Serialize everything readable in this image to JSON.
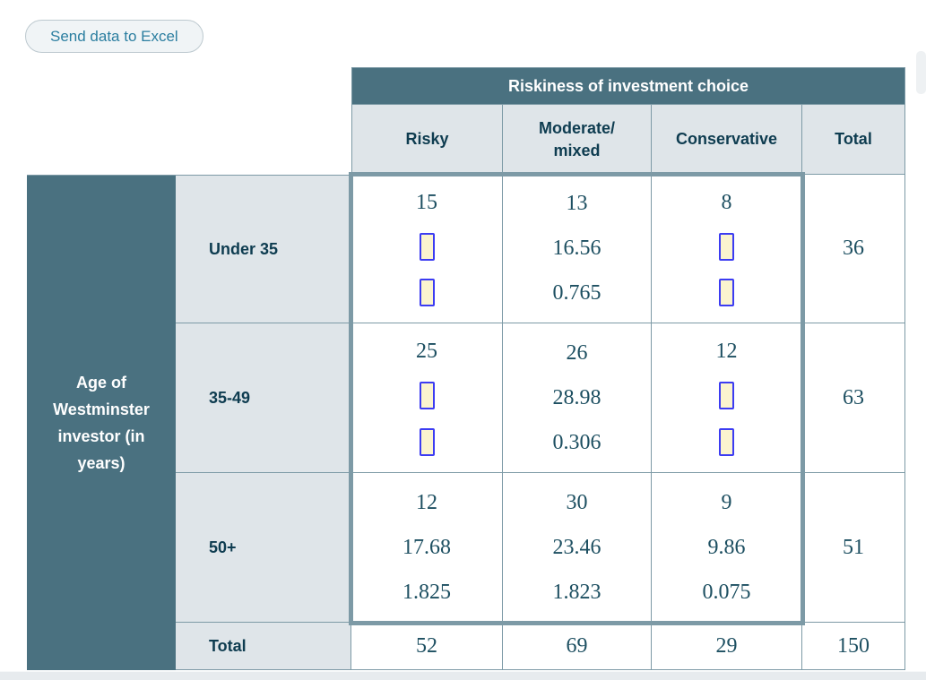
{
  "toolbar": {
    "send_to_excel": "Send data to Excel"
  },
  "table": {
    "column_group_header": "Riskiness of investment choice",
    "row_group_header": "Age of Westminster investor (in years)",
    "row_group_header_lines": [
      "Age of",
      "Westminster",
      "investor (in",
      "years)"
    ],
    "column_headers": {
      "risky": "Risky",
      "moderate_line1": "Moderate/",
      "moderate_line2": "mixed",
      "conservative": "Conservative",
      "total": "Total"
    },
    "rows": {
      "under35": {
        "label": "Under 35",
        "risky": {
          "observed": "15"
        },
        "moderate": {
          "observed": "13",
          "expected": "16.56",
          "contribution": "0.765"
        },
        "conservative": {
          "observed": "8"
        },
        "total": "36"
      },
      "age_35_49": {
        "label": "35-49",
        "risky": {
          "observed": "25"
        },
        "moderate": {
          "observed": "26",
          "expected": "28.98",
          "contribution": "0.306"
        },
        "conservative": {
          "observed": "12"
        },
        "total": "63"
      },
      "age_50_plus": {
        "label": "50+",
        "risky": {
          "observed": "12",
          "expected": "17.68",
          "contribution": "1.825"
        },
        "moderate": {
          "observed": "30",
          "expected": "23.46",
          "contribution": "1.823"
        },
        "conservative": {
          "observed": "9",
          "expected": "9.86",
          "contribution": "0.075"
        },
        "total": "51"
      },
      "totals": {
        "label": "Total",
        "risky": "52",
        "moderate": "69",
        "conservative": "29",
        "grand_total": "150"
      }
    }
  },
  "colors": {
    "header_teal": "#4a7180",
    "table_border": "#7d9aa6",
    "header_bg": "#dfe5e9",
    "heading_text": "#0e3c50",
    "value_text": "#1d4f61",
    "button_text": "#2b7ea0",
    "input_border": "#3c3cf2",
    "input_bg": "#fbf4cf"
  }
}
